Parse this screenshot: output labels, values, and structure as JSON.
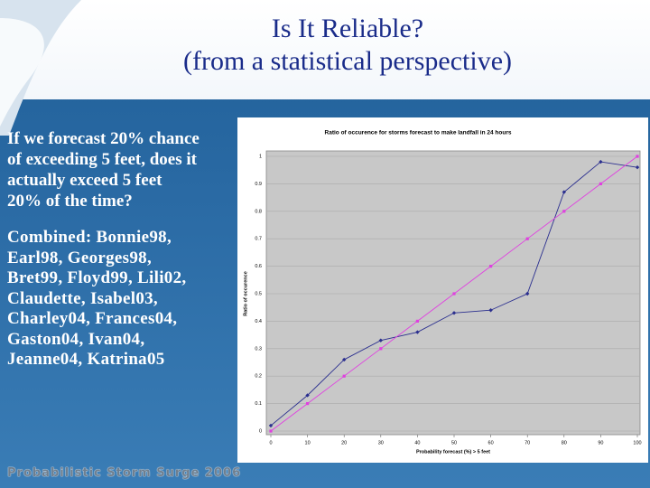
{
  "slide": {
    "title_lines": [
      "Is It Reliable?",
      "(from a statistical perspective)"
    ],
    "question_lines": [
      "If we forecast 20% chance",
      "of exceeding 5 feet, does it",
      "actually exceed 5 feet",
      "20% of the time?"
    ],
    "storms_lines": [
      "Combined: Bonnie98,",
      "Earl98, Georges98,",
      "Bret99, Floyd99, Lili02,",
      "Claudette, Isabel03,",
      "Charley04, Frances04,",
      "Gaston04, Ivan04,",
      "Jeanne04, Katrina05"
    ],
    "footer": "Probabilistic Storm Surge 2006"
  },
  "chart_data": {
    "type": "line",
    "title": "Ratio of occurence for storms forecast to make landfall in 24 hours",
    "x_label": "Probability forecast (%) > 5 feet",
    "y_label": "Ratio of occurence",
    "x": [
      0,
      10,
      20,
      30,
      40,
      50,
      60,
      70,
      80,
      90,
      100
    ],
    "series": [
      {
        "color": "#2b2f8f",
        "marker": "diamond",
        "values": [
          0.02,
          0.13,
          0.26,
          0.33,
          0.36,
          0.43,
          0.44,
          0.5,
          0.87,
          0.98,
          0.96
        ]
      },
      {
        "color": "#e040e0",
        "marker": "square",
        "values": [
          0,
          0.1,
          0.2,
          0.3,
          0.4,
          0.5,
          0.6,
          0.7,
          0.8,
          0.9,
          1
        ]
      }
    ],
    "xlim": [
      0,
      100
    ],
    "xticks": [
      0,
      10,
      20,
      30,
      40,
      50,
      60,
      70,
      80,
      90,
      100
    ],
    "ylim": [
      0,
      1
    ],
    "yticks": [
      0,
      0.1,
      0.2,
      0.3,
      0.4,
      0.5,
      0.6,
      0.7,
      0.8,
      0.9,
      1
    ],
    "grid": true
  }
}
